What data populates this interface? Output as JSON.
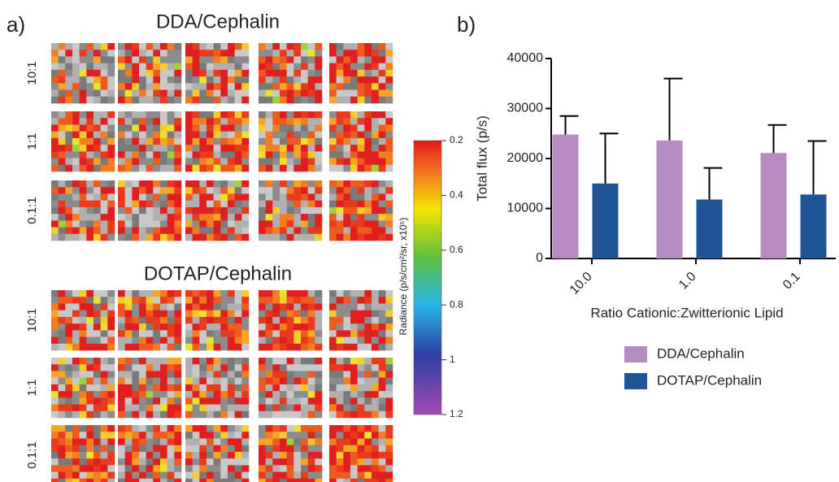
{
  "panel_a": {
    "label": "a)",
    "groups": [
      {
        "title": "DDA/Cephalin",
        "rows": [
          "10:1",
          "1:1",
          "0.1:1"
        ]
      },
      {
        "title": "DOTAP/Cephalin",
        "rows": [
          "10:1",
          "1:1",
          "0.1:1"
        ]
      }
    ],
    "colorbar": {
      "title": "Radiance (p/s/cm²/sr, x10⁵)",
      "lim": [
        0.2,
        1.2
      ],
      "ticks": [
        0.2,
        0.4,
        0.6,
        0.8,
        1.0,
        1.2
      ]
    }
  },
  "chart_data": {
    "type": "bar",
    "label": "b)",
    "y_label": "Total flux (p/s)",
    "x_label": "Ratio Cationic:Zwitterionic Lipid",
    "categories": [
      "10.0",
      "1.0",
      "0.1"
    ],
    "series": [
      {
        "name": "DDA/Cephalin",
        "color": "#b48cc2",
        "values": [
          24800,
          23600,
          21100
        ],
        "errors": [
          3700,
          12400,
          5600
        ]
      },
      {
        "name": "DOTAP/Cephalin",
        "color": "#1f5597",
        "values": [
          15000,
          11800,
          12800
        ],
        "errors": [
          10000,
          6300,
          10700
        ]
      }
    ],
    "ylim": [
      0,
      40000
    ],
    "yticks": [
      0,
      10000,
      20000,
      30000,
      40000
    ]
  }
}
